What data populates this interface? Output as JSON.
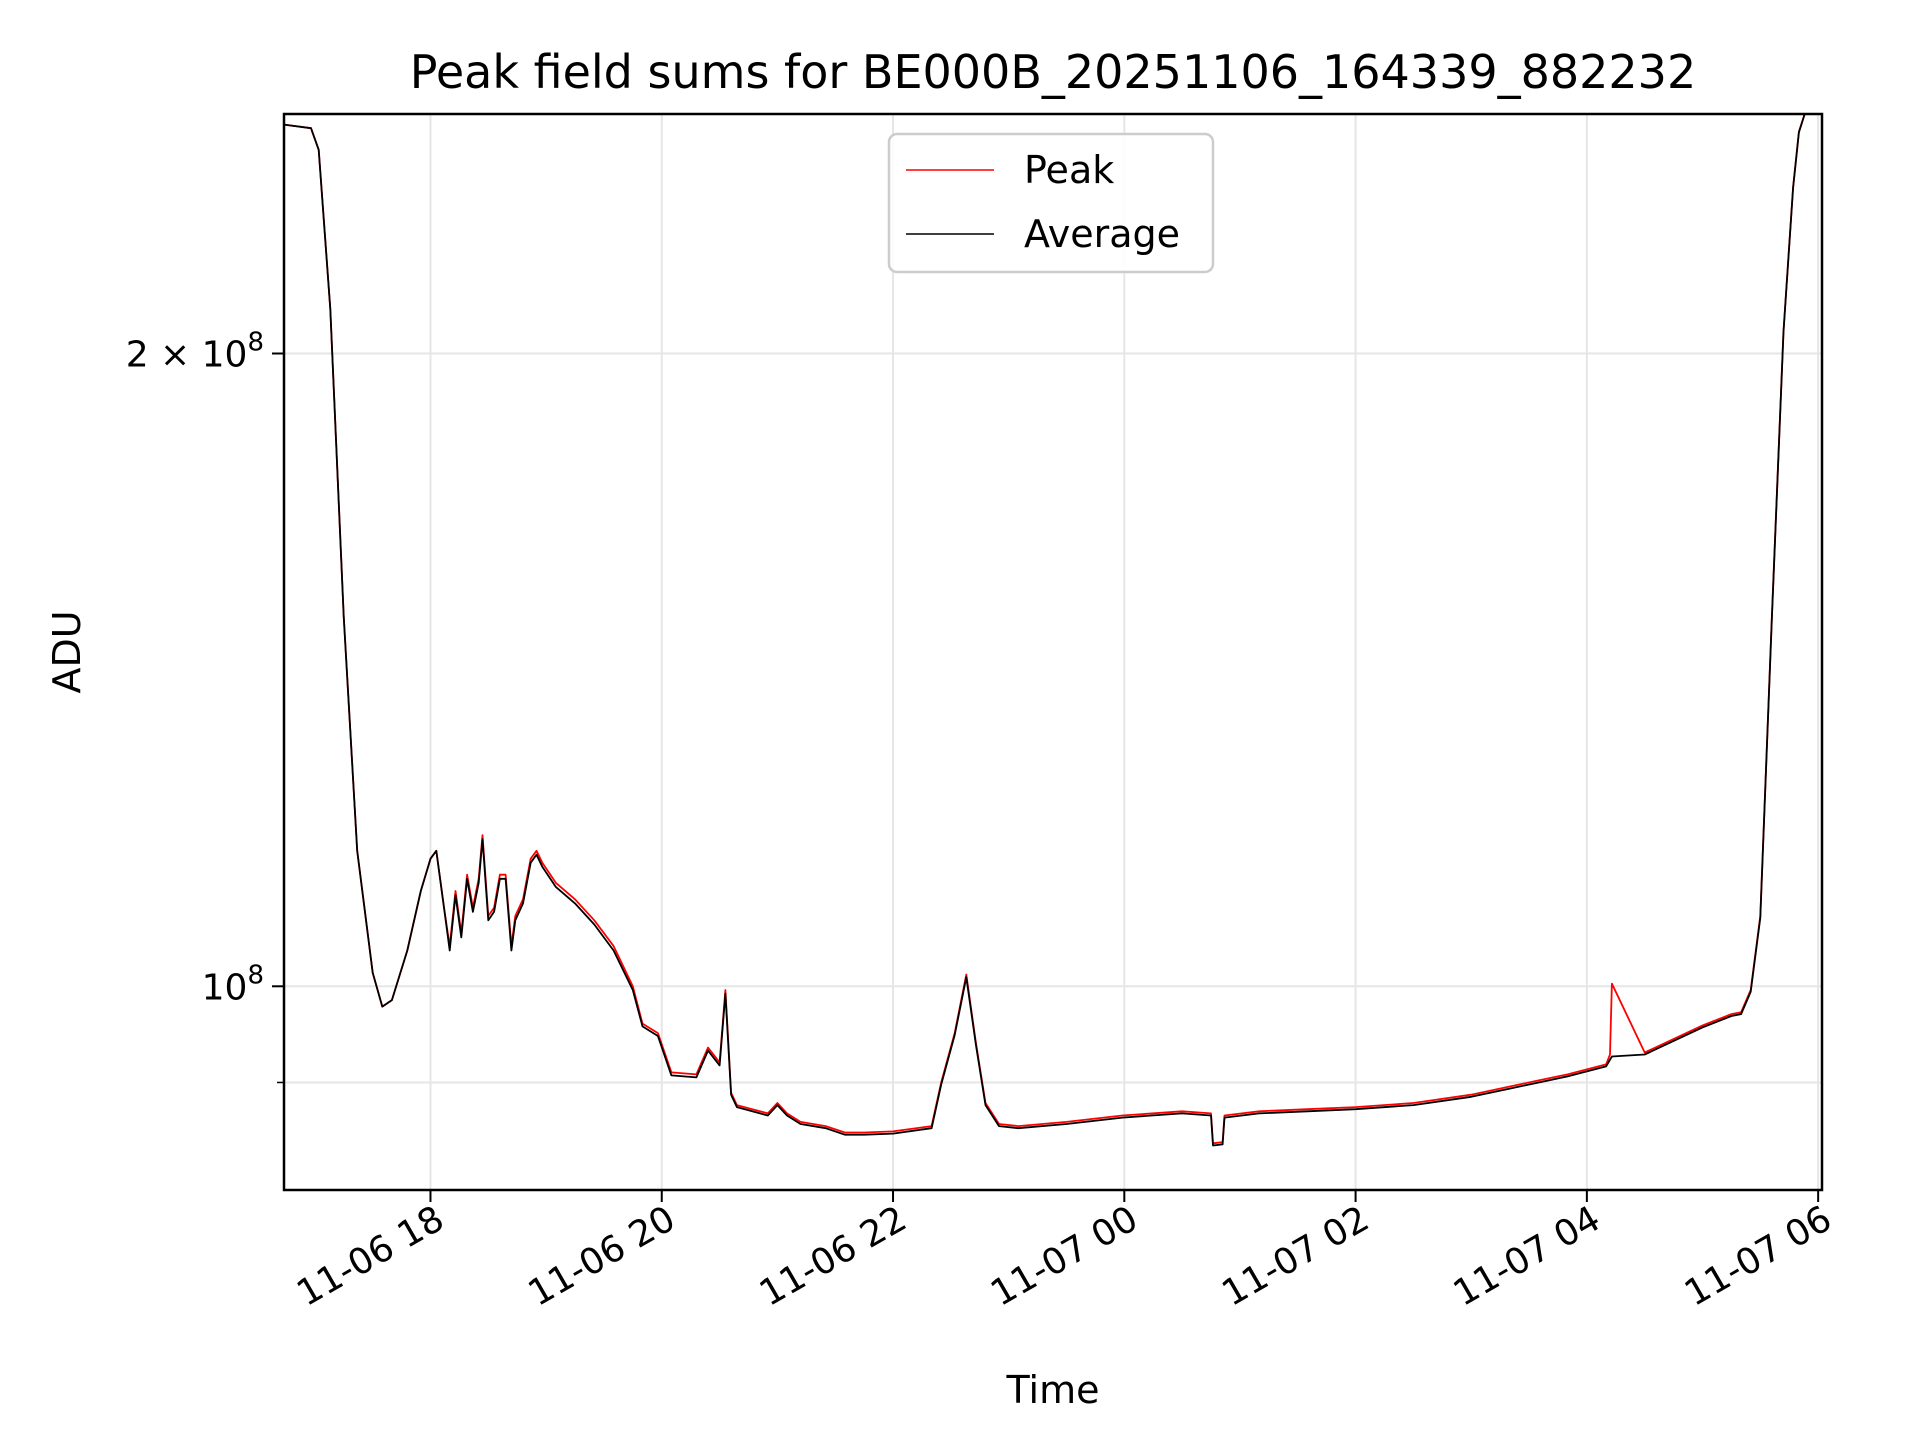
{
  "chart_data": {
    "type": "line",
    "title": "Peak field sums for BE000B_20251106_164339_882232",
    "xlabel": "Time",
    "ylabel": "ADU",
    "y_scale": "log",
    "xlim": [
      "2025-11-06 16:44",
      "2025-11-07 06:02"
    ],
    "ylim": [
      80000000,
      260000000
    ],
    "grid": true,
    "legend_position": "top-center",
    "x_ticks": [
      {
        "value": "2025-11-06 18:00",
        "label": "11-06 18"
      },
      {
        "value": "2025-11-06 20:00",
        "label": "11-06 20"
      },
      {
        "value": "2025-11-06 22:00",
        "label": "11-06 22"
      },
      {
        "value": "2025-11-07 00:00",
        "label": "11-07 00"
      },
      {
        "value": "2025-11-07 02:00",
        "label": "11-07 02"
      },
      {
        "value": "2025-11-07 04:00",
        "label": "11-07 04"
      },
      {
        "value": "2025-11-07 06:00",
        "label": "11-07 06"
      }
    ],
    "y_ticks": [
      {
        "value": 200000000,
        "label": "2 × 10⁸",
        "mantissa": "2 × 10",
        "exponent": "8"
      },
      {
        "value": 100000000,
        "label": "10⁸",
        "mantissa": "10",
        "exponent": "8"
      }
    ],
    "y_minor_gridlines": [
      90000000
    ],
    "series": [
      {
        "name": "Peak",
        "color": "#ff0000",
        "x": [
          "2025-11-06 16:44",
          "2025-11-06 16:58",
          "2025-11-06 17:02",
          "2025-11-06 17:08",
          "2025-11-06 17:15",
          "2025-11-06 17:22",
          "2025-11-06 17:30",
          "2025-11-06 17:35",
          "2025-11-06 17:40",
          "2025-11-06 17:48",
          "2025-11-06 17:55",
          "2025-11-06 18:00",
          "2025-11-06 18:03",
          "2025-11-06 18:07",
          "2025-11-06 18:10",
          "2025-11-06 18:13",
          "2025-11-06 18:16",
          "2025-11-06 18:19",
          "2025-11-06 18:22",
          "2025-11-06 18:25",
          "2025-11-06 18:27",
          "2025-11-06 18:30",
          "2025-11-06 18:33",
          "2025-11-06 18:36",
          "2025-11-06 18:39",
          "2025-11-06 18:42",
          "2025-11-06 18:44",
          "2025-11-06 18:48",
          "2025-11-06 18:52",
          "2025-11-06 18:55",
          "2025-11-06 18:58",
          "2025-11-06 19:05",
          "2025-11-06 19:15",
          "2025-11-06 19:25",
          "2025-11-06 19:35",
          "2025-11-06 19:45",
          "2025-11-06 19:50",
          "2025-11-06 19:58",
          "2025-11-06 20:05",
          "2025-11-06 20:18",
          "2025-11-06 20:24",
          "2025-11-06 20:30",
          "2025-11-06 20:33",
          "2025-11-06 20:36",
          "2025-11-06 20:39",
          "2025-11-06 20:45",
          "2025-11-06 20:55",
          "2025-11-06 21:00",
          "2025-11-06 21:05",
          "2025-11-06 21:12",
          "2025-11-06 21:25",
          "2025-11-06 21:35",
          "2025-11-06 21:45",
          "2025-11-06 22:00",
          "2025-11-06 22:20",
          "2025-11-06 22:25",
          "2025-11-06 22:32",
          "2025-11-06 22:38",
          "2025-11-06 22:43",
          "2025-11-06 22:48",
          "2025-11-06 22:55",
          "2025-11-06 23:05",
          "2025-11-06 23:30",
          "2025-11-06 23:59",
          "2025-11-07 00:30",
          "2025-11-07 00:45",
          "2025-11-07 00:46",
          "2025-11-07 00:51",
          "2025-11-07 00:52",
          "2025-11-07 01:10",
          "2025-11-07 01:35",
          "2025-11-07 02:00",
          "2025-11-07 02:30",
          "2025-11-07 03:00",
          "2025-11-07 03:20",
          "2025-11-07 03:35",
          "2025-11-07 03:50",
          "2025-11-07 04:10",
          "2025-11-07 04:12",
          "2025-11-07 04:13",
          "2025-11-07 04:30",
          "2025-11-07 05:00",
          "2025-11-07 05:15",
          "2025-11-07 05:20",
          "2025-11-07 05:25",
          "2025-11-07 05:30",
          "2025-11-07 05:36",
          "2025-11-07 05:42",
          "2025-11-07 05:47",
          "2025-11-07 05:50",
          "2025-11-07 05:53"
        ],
        "values": [
          257000000,
          256000000,
          250000000,
          210000000,
          150000000,
          116000000,
          101500000,
          97800000,
          98500000,
          104000000,
          111000000,
          115000000,
          116000000,
          109000000,
          104500000,
          111000000,
          106000000,
          113000000,
          109000000,
          112500000,
          118000000,
          108000000,
          109000000,
          113000000,
          113000000,
          104500000,
          108000000,
          110000000,
          115000000,
          116000000,
          114500000,
          112000000,
          110000000,
          107500000,
          104500000,
          100000000,
          96000000,
          95000000,
          91000000,
          90800000,
          93500000,
          92000000,
          99600000,
          89000000,
          87800000,
          87500000,
          87000000,
          88000000,
          87000000,
          86200000,
          85800000,
          85200000,
          85200000,
          85300000,
          85800000,
          90000000,
          95000000,
          101300000,
          94000000,
          88000000,
          86000000,
          85800000,
          86200000,
          86800000,
          87200000,
          87000000,
          84200000,
          84300000,
          86800000,
          87200000,
          87400000,
          87600000,
          88000000,
          88800000,
          89600000,
          90200000,
          90800000,
          91800000,
          92800000,
          100300000,
          93000000,
          95800000,
          97000000,
          97200000,
          99600000,
          108000000,
          150000000,
          205000000,
          240000000,
          255000000,
          262000000
        ]
      },
      {
        "name": "Average",
        "color": "#000000",
        "x": [
          "2025-11-06 16:44",
          "2025-11-06 16:58",
          "2025-11-06 17:02",
          "2025-11-06 17:08",
          "2025-11-06 17:15",
          "2025-11-06 17:22",
          "2025-11-06 17:30",
          "2025-11-06 17:35",
          "2025-11-06 17:40",
          "2025-11-06 17:48",
          "2025-11-06 17:55",
          "2025-11-06 18:00",
          "2025-11-06 18:03",
          "2025-11-06 18:07",
          "2025-11-06 18:10",
          "2025-11-06 18:13",
          "2025-11-06 18:16",
          "2025-11-06 18:19",
          "2025-11-06 18:22",
          "2025-11-06 18:25",
          "2025-11-06 18:27",
          "2025-11-06 18:30",
          "2025-11-06 18:33",
          "2025-11-06 18:36",
          "2025-11-06 18:39",
          "2025-11-06 18:42",
          "2025-11-06 18:44",
          "2025-11-06 18:48",
          "2025-11-06 18:52",
          "2025-11-06 18:55",
          "2025-11-06 18:58",
          "2025-11-06 19:05",
          "2025-11-06 19:15",
          "2025-11-06 19:25",
          "2025-11-06 19:35",
          "2025-11-06 19:45",
          "2025-11-06 19:50",
          "2025-11-06 19:58",
          "2025-11-06 20:05",
          "2025-11-06 20:18",
          "2025-11-06 20:24",
          "2025-11-06 20:30",
          "2025-11-06 20:33",
          "2025-11-06 20:36",
          "2025-11-06 20:39",
          "2025-11-06 20:45",
          "2025-11-06 20:55",
          "2025-11-06 21:00",
          "2025-11-06 21:05",
          "2025-11-06 21:12",
          "2025-11-06 21:25",
          "2025-11-06 21:35",
          "2025-11-06 21:45",
          "2025-11-06 22:00",
          "2025-11-06 22:20",
          "2025-11-06 22:25",
          "2025-11-06 22:32",
          "2025-11-06 22:38",
          "2025-11-06 22:43",
          "2025-11-06 22:48",
          "2025-11-06 22:55",
          "2025-11-06 23:05",
          "2025-11-06 23:30",
          "2025-11-06 23:59",
          "2025-11-07 00:30",
          "2025-11-07 00:45",
          "2025-11-07 00:46",
          "2025-11-07 00:51",
          "2025-11-07 00:52",
          "2025-11-07 01:10",
          "2025-11-07 01:35",
          "2025-11-07 02:00",
          "2025-11-07 02:30",
          "2025-11-07 03:00",
          "2025-11-07 03:20",
          "2025-11-07 03:35",
          "2025-11-07 03:50",
          "2025-11-07 04:10",
          "2025-11-07 04:13",
          "2025-11-07 04:30",
          "2025-11-07 05:00",
          "2025-11-07 05:15",
          "2025-11-07 05:20",
          "2025-11-07 05:25",
          "2025-11-07 05:30",
          "2025-11-07 05:36",
          "2025-11-07 05:42",
          "2025-11-07 05:47",
          "2025-11-07 05:50",
          "2025-11-07 05:53"
        ],
        "values": [
          257000000,
          256000000,
          250000000,
          210000000,
          150000000,
          116000000,
          101500000,
          97800000,
          98500000,
          104000000,
          111000000,
          115000000,
          116000000,
          109000000,
          104000000,
          110500000,
          105500000,
          112500000,
          108500000,
          112000000,
          117500000,
          107500000,
          108500000,
          112500000,
          112500000,
          104000000,
          107500000,
          109500000,
          114500000,
          115500000,
          114000000,
          111500000,
          109500000,
          107000000,
          104000000,
          99600000,
          95700000,
          94700000,
          90700000,
          90500000,
          93200000,
          91700000,
          99200000,
          88800000,
          87600000,
          87300000,
          86800000,
          87800000,
          86800000,
          86000000,
          85600000,
          85000000,
          85000000,
          85100000,
          85600000,
          89800000,
          94800000,
          101000000,
          93800000,
          87800000,
          85800000,
          85600000,
          86000000,
          86600000,
          87000000,
          86800000,
          84000000,
          84100000,
          86600000,
          87000000,
          87200000,
          87400000,
          87800000,
          88600000,
          89400000,
          90000000,
          90600000,
          91600000,
          92600000,
          92800000,
          95600000,
          96800000,
          97000000,
          99400000,
          107800000,
          149800000,
          204800000,
          239800000,
          254800000,
          261800000
        ]
      }
    ]
  }
}
